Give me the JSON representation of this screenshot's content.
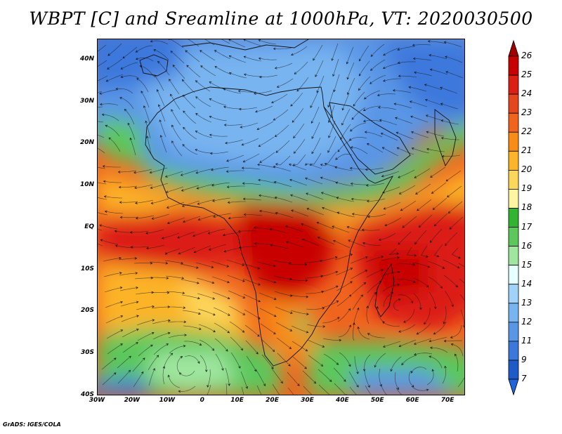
{
  "title": "WBPT [C] and Sreamline at 1000hPa, VT: 2020030500",
  "credit": "GrADS: IGES/COLA",
  "map": {
    "lat_ticks": [
      "40N",
      "30N",
      "20N",
      "10N",
      "EQ",
      "10S",
      "20S",
      "30S",
      "40S"
    ],
    "lon_ticks": [
      "30W",
      "20W",
      "10W",
      "0",
      "10E",
      "20E",
      "30E",
      "40E",
      "50E",
      "60E",
      "70E"
    ],
    "extent": {
      "lon_min": -30,
      "lon_max": 75,
      "lat_min": -40,
      "lat_max": 45
    }
  },
  "colorbar": {
    "labels": [
      "26",
      "25",
      "24",
      "23",
      "22",
      "21",
      "20",
      "19",
      "18",
      "17",
      "16",
      "15",
      "14",
      "13",
      "12",
      "11",
      "9",
      "7"
    ],
    "colors": [
      "#c80000",
      "#dc1e14",
      "#e6461e",
      "#f0641e",
      "#f88c14",
      "#fcb428",
      "#fcd75a",
      "#fff5a0",
      "#32b432",
      "#5cc85c",
      "#a0e6a0",
      "#e6ffff",
      "#a0d2fa",
      "#78b4f0",
      "#5a96e6",
      "#3c78dc",
      "#1e5ac8"
    ],
    "top_arrow_color": "#a00000",
    "bottom_arrow_color": "#1e64dc"
  }
}
